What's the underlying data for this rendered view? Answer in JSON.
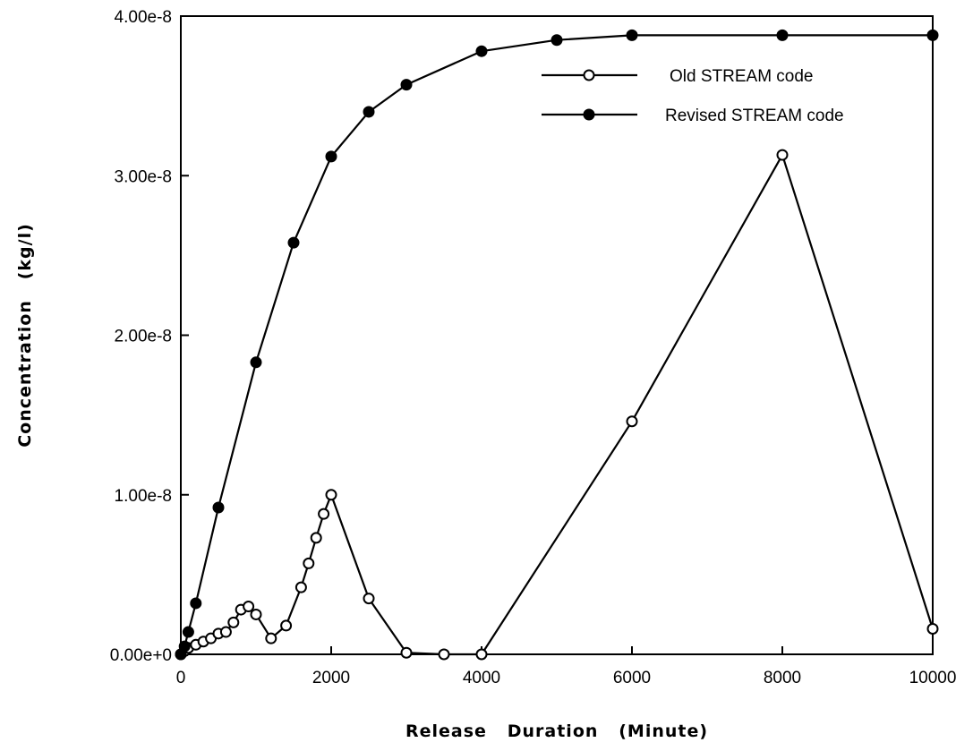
{
  "chart_data": {
    "type": "line",
    "xlabel": "Release   Duration   (Minute)",
    "ylabel": "Concentration   (kg/l)",
    "xlim": [
      0,
      10000
    ],
    "ylim": [
      0,
      4e-08
    ],
    "x_ticks": [
      0,
      2000,
      4000,
      6000,
      8000,
      10000
    ],
    "x_tick_labels": [
      "0",
      "2000",
      "4000",
      "6000",
      "8000",
      "10000"
    ],
    "y_ticks": [
      0,
      1e-08,
      2e-08,
      3e-08,
      4e-08
    ],
    "y_tick_labels": [
      "0.00e+0",
      "1.00e-8",
      "2.00e-8",
      "3.00e-8",
      "4.00e-8"
    ],
    "grid": false,
    "legend_position": "top-right",
    "series": [
      {
        "name": "Old STREAM code",
        "marker": "open-circle",
        "color": "#000000",
        "x": [
          0,
          50,
          100,
          200,
          300,
          400,
          500,
          600,
          700,
          800,
          900,
          1000,
          1200,
          1400,
          1600,
          1700,
          1800,
          1900,
          2000,
          2500,
          3000,
          3500,
          4000,
          6000,
          8000,
          10000
        ],
        "y": [
          0,
          2e-10,
          4e-10,
          6e-10,
          8e-10,
          1e-09,
          1.3e-09,
          1.4e-09,
          2e-09,
          2.8e-09,
          3e-09,
          2.5e-09,
          1e-09,
          1.8e-09,
          4.2e-09,
          5.7e-09,
          7.3e-09,
          8.8e-09,
          1e-08,
          3.5e-09,
          1e-10,
          0,
          0,
          1.46e-08,
          3.13e-08,
          1.6e-09
        ]
      },
      {
        "name": "Revised STREAM code",
        "marker": "filled-circle",
        "color": "#000000",
        "x": [
          0,
          50,
          100,
          200,
          500,
          1000,
          1500,
          2000,
          2500,
          3000,
          4000,
          5000,
          6000,
          8000,
          10000
        ],
        "y": [
          0,
          5e-10,
          1.4e-09,
          3.2e-09,
          9.2e-09,
          1.83e-08,
          2.58e-08,
          3.12e-08,
          3.4e-08,
          3.57e-08,
          3.78e-08,
          3.85e-08,
          3.88e-08,
          3.88e-08,
          3.88e-08
        ]
      }
    ]
  }
}
